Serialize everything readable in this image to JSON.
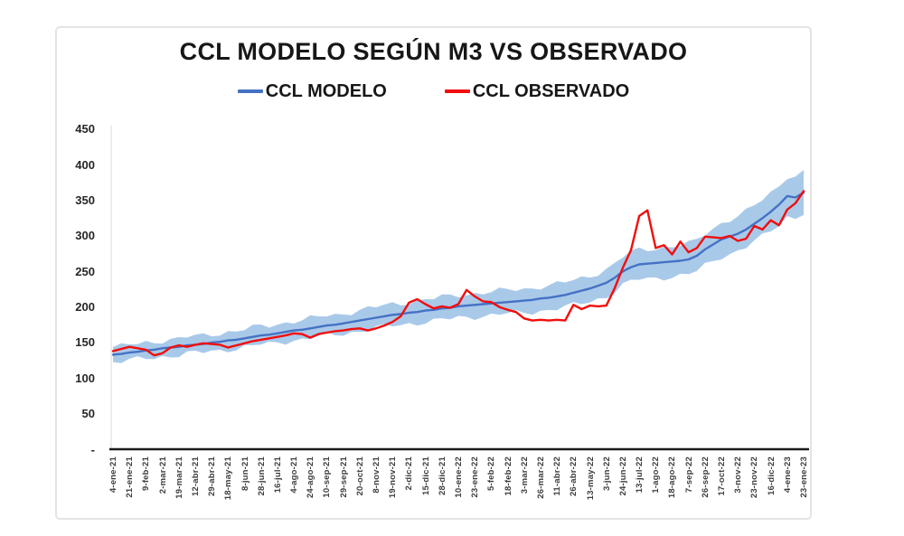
{
  "chart_data": {
    "type": "line",
    "title": "CCL MODELO SEGÚN M3 VS OBSERVADO",
    "legend_position": "top",
    "grid": false,
    "ylim": [
      0,
      470
    ],
    "y_ticks": [
      450,
      400,
      350,
      300,
      250,
      200,
      150,
      100,
      50,
      0
    ],
    "y_tick_labels": [
      "450",
      "400",
      "350",
      "300",
      "250",
      "200",
      "150",
      "100",
      "50",
      "-"
    ],
    "x_tick_labels": [
      "4-ene-21",
      "21-ene-21",
      "9-feb-21",
      "2-mar-21",
      "19-mar-21",
      "12-abr-21",
      "29-abr-21",
      "18-may-21",
      "8-jun-21",
      "28-jun-21",
      "16-jul-21",
      "4-ago-21",
      "24-ago-21",
      "10-sep-21",
      "29-sep-21",
      "20-oct-21",
      "8-nov-21",
      "19-nov-21",
      "2-dic-21",
      "15-dic-21",
      "28-dic-21",
      "10-ene-22",
      "23-ene-22",
      "5-feb-22",
      "18-feb-22",
      "3-mar-22",
      "26-mar-22",
      "11-abr-22",
      "26-abr-22",
      "13-may-22",
      "3-jun-22",
      "24-jun-22",
      "13-jul-22",
      "1-ago-22",
      "18-ago-22",
      "7-sep-22",
      "26-sep-22",
      "17-oct-22",
      "3-nov-22",
      "23-nov-22",
      "16-dic-22",
      "4-ene-23",
      "23-ene-23"
    ],
    "points_per_tick_interval": 2,
    "series": [
      {
        "name": "CCL MODELO",
        "color": "#4472C4",
        "values": [
          133,
          134,
          136,
          137,
          139,
          140,
          142,
          143,
          144,
          146,
          147,
          148,
          150,
          151,
          153,
          154,
          156,
          158,
          160,
          161,
          163,
          165,
          167,
          168,
          170,
          172,
          174,
          175,
          177,
          179,
          181,
          183,
          185,
          187,
          189,
          190,
          192,
          193,
          195,
          196,
          198,
          199,
          201,
          202,
          203,
          204,
          205,
          206,
          207,
          208,
          209,
          210,
          212,
          213,
          215,
          217,
          220,
          223,
          226,
          230,
          234,
          241,
          250,
          256,
          260,
          261,
          262,
          263,
          264,
          265,
          267,
          272,
          281,
          288,
          295,
          299,
          303,
          309,
          317,
          325,
          334,
          344,
          356,
          354,
          361
        ]
      },
      {
        "name": "CCL OBSERVADO",
        "color": "#F20D0D",
        "values": [
          138,
          141,
          144,
          142,
          140,
          132,
          135,
          143,
          146,
          144,
          147,
          149,
          148,
          147,
          143,
          146,
          149,
          152,
          154,
          156,
          158,
          160,
          163,
          162,
          157,
          162,
          164,
          166,
          167,
          169,
          170,
          167,
          170,
          174,
          179,
          187,
          206,
          211,
          204,
          198,
          201,
          199,
          204,
          224,
          215,
          208,
          207,
          200,
          196,
          193,
          184,
          181,
          182,
          181,
          182,
          181,
          203,
          197,
          202,
          201,
          202,
          226,
          255,
          280,
          328,
          336,
          283,
          287,
          274,
          292,
          277,
          283,
          299,
          298,
          297,
          300,
          293,
          296,
          314,
          309,
          322,
          315,
          337,
          346,
          363
        ]
      }
    ],
    "confidence_band": {
      "around_series": "CCL MODELO",
      "pct": 0.08,
      "color": "#A9C9E9"
    },
    "axis_color": "#1a1a1a"
  }
}
